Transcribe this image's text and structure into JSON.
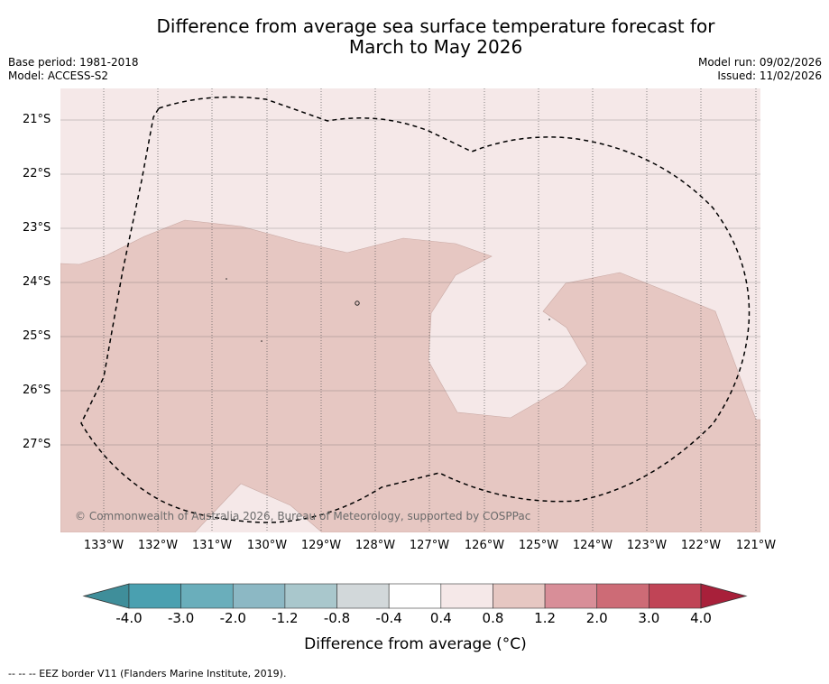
{
  "title": {
    "line1": "Difference from average sea surface temperature forecast for",
    "line2": "March to May 2026"
  },
  "meta": {
    "base_period": "Base period: 1981-2018",
    "model": "Model: ACCESS-S2",
    "model_run": "Model run: 09/02/2026",
    "issued": "Issued: 11/02/2026"
  },
  "map": {
    "lat_labels": [
      "21°S",
      "22°S",
      "23°S",
      "24°S",
      "25°S",
      "26°S",
      "27°S"
    ],
    "lon_labels": [
      "133°W",
      "132°W",
      "131°W",
      "130°W",
      "129°W",
      "128°W",
      "127°W",
      "126°W",
      "125°W",
      "124°W",
      "123°W",
      "122°W",
      "121°W"
    ],
    "copyright": "© Commonwealth of Australia 2026, Bureau of Meteorology, supported by COSPPac",
    "colors": {
      "band_0_4_0_8": "#f5e8e8",
      "band_0_8_1_2": "#e6c7c2",
      "grid": "#555555",
      "eez_border": "#000000"
    }
  },
  "colorbar": {
    "tick_labels": [
      "-4.0",
      "-3.0",
      "-2.0",
      "-1.2",
      "-0.8",
      "-0.4",
      "0.4",
      "0.8",
      "1.2",
      "2.0",
      "3.0",
      "4.0"
    ],
    "colors": [
      "#3f8e9a",
      "#4aa0b0",
      "#6aaebb",
      "#8cb8c4",
      "#a9c7cc",
      "#d2d8da",
      "#ffffff",
      "#f5e8e8",
      "#e6c7c2",
      "#d88e98",
      "#cd6b76",
      "#c04456",
      "#a8203a"
    ],
    "label": "Difference from average (°C)"
  },
  "footnote": "--  --  -- EEZ border V11 (Flanders Marine Institute, 2019)."
}
